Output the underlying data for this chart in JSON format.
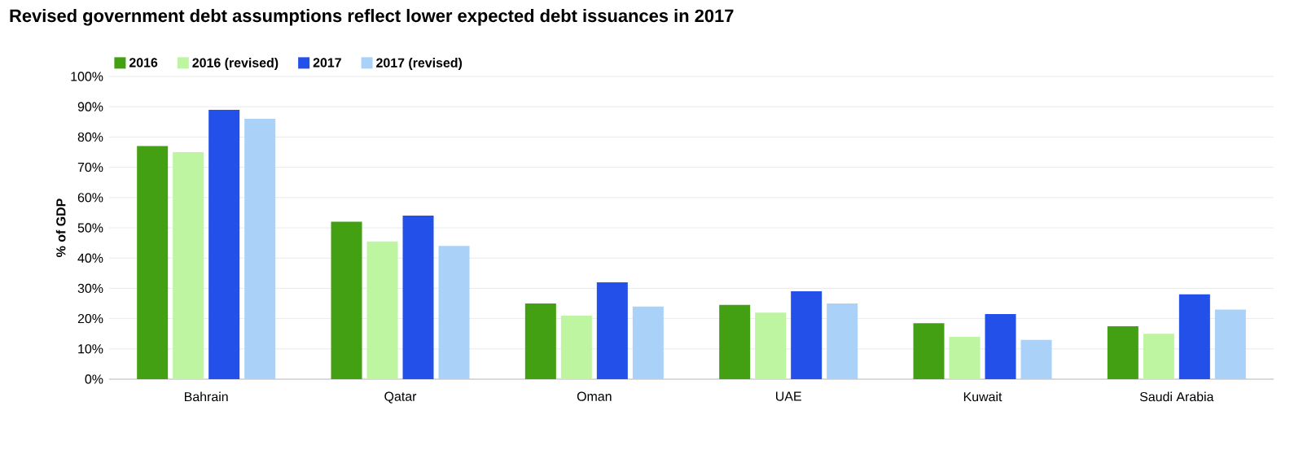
{
  "chart_data": {
    "type": "bar",
    "title": "Revised government debt assumptions reflect lower expected debt issuances in 2017",
    "ylabel": "% of GDP",
    "categories": [
      "Bahrain",
      "Qatar",
      "Oman",
      "UAE",
      "Kuwait",
      "Saudi Arabia"
    ],
    "series": [
      {
        "name": "2016",
        "color": "#43a012",
        "values": [
          77,
          52,
          25,
          24.5,
          18.5,
          17.5
        ]
      },
      {
        "name": "2016 (revised)",
        "color": "#bdf5a0",
        "values": [
          75,
          45.5,
          21,
          22,
          14,
          15
        ]
      },
      {
        "name": "2017",
        "color": "#2250e8",
        "values": [
          89,
          54,
          32,
          29,
          21.5,
          28
        ]
      },
      {
        "name": "2017 (revised)",
        "color": "#aad2f8",
        "values": [
          86,
          44,
          24,
          25,
          13,
          23
        ]
      }
    ],
    "ylim": [
      0,
      100
    ],
    "yticks": [
      {
        "value": 0,
        "label": "0%"
      },
      {
        "value": 10,
        "label": "10%"
      },
      {
        "value": 20,
        "label": "20%"
      },
      {
        "value": 30,
        "label": "30%"
      },
      {
        "value": 40,
        "label": "40%"
      },
      {
        "value": 50,
        "label": "50%"
      },
      {
        "value": 60,
        "label": "60%"
      },
      {
        "value": 70,
        "label": "70%"
      },
      {
        "value": 80,
        "label": "80%"
      },
      {
        "value": 90,
        "label": "90%"
      },
      {
        "value": 100,
        "label": "100%"
      }
    ],
    "grid": "y",
    "legend": "top left"
  }
}
